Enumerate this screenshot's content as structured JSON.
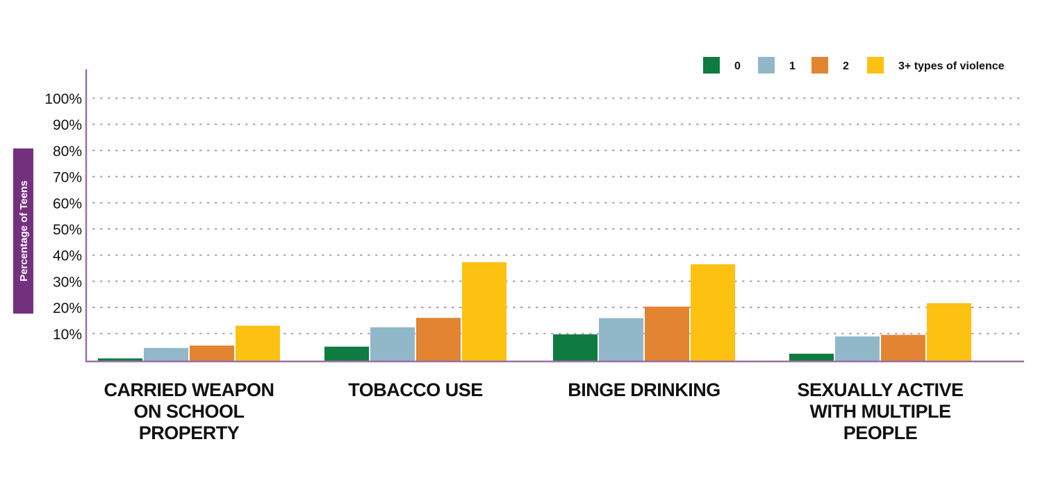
{
  "chart_data": {
    "type": "bar",
    "title": "",
    "xlabel": "",
    "ylabel": "Percentage of Teens",
    "ylim": [
      0,
      100
    ],
    "yticks": [
      "10%",
      "20%",
      "30%",
      "40%",
      "50%",
      "60%",
      "70%",
      "80%",
      "90%",
      "100%"
    ],
    "grid": true,
    "legend_position": "top-right",
    "categories": [
      [
        "CARRIED WEAPON",
        "ON SCHOOL",
        "PROPERTY"
      ],
      [
        "TOBACCO USE"
      ],
      [
        "BINGE DRINKING"
      ],
      [
        "SEXUALLY ACTIVE",
        "WITH MULTIPLE",
        "PEOPLE"
      ]
    ],
    "series": [
      {
        "name": "0",
        "color": "#0e7b40",
        "values": [
          0.5,
          5,
          9.7,
          2.3
        ]
      },
      {
        "name": "1",
        "color": "#91b8c9",
        "values": [
          4.5,
          12.4,
          15.9,
          8.9
        ]
      },
      {
        "name": "2",
        "color": "#e28431",
        "values": [
          5.4,
          16,
          20.3,
          9.5
        ]
      },
      {
        "name": "3+ types of violence",
        "color": "#fdc112",
        "values": [
          13,
          37.3,
          36.5,
          21.6
        ]
      }
    ],
    "colors": {
      "axis": "#9b6fa6",
      "grid": "#b998c3",
      "ylabel_bg": "#74307f"
    }
  }
}
